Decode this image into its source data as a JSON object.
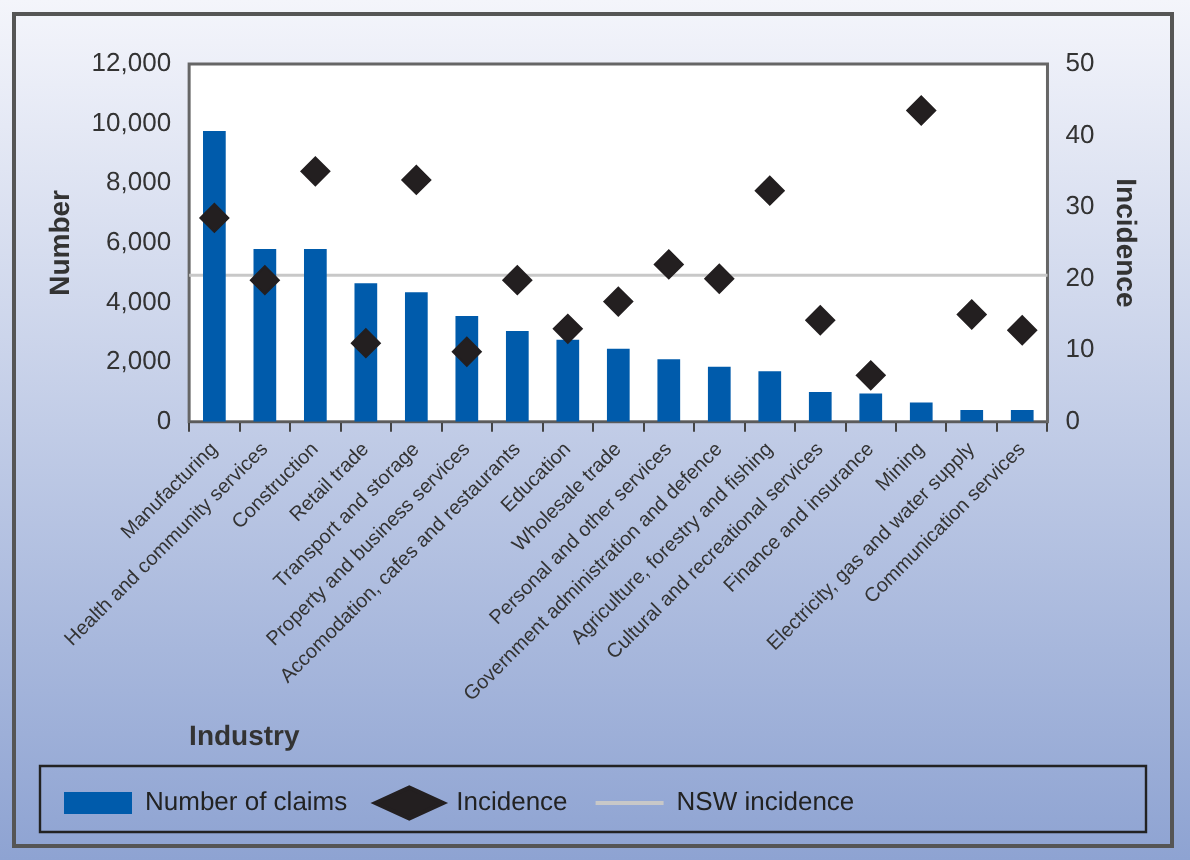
{
  "chart_data": {
    "type": "bar",
    "xlabel": "Industry",
    "ylabel": "Number",
    "y2label": "Incidence",
    "categories": [
      "Manufacturing",
      "Health and community services",
      "Construction",
      "Retail trade",
      "Transport and storage",
      "Property and business services",
      "Accomodation, cafes and restaurants",
      "Education",
      "Wholesale trade",
      "Personal and other services",
      "Government administration and defence",
      "Agriculture, forestry and fishing",
      "Cultural and recreational services",
      "Finance and insurance",
      "Mining",
      "Electricity, gas and water supply",
      "Communication services"
    ],
    "series": [
      {
        "name": "Number of claims",
        "color": "#005bab",
        "values": [
          9750,
          5800,
          5800,
          4650,
          4350,
          3550,
          3050,
          2750,
          2450,
          2100,
          1850,
          1700,
          1000,
          950,
          650,
          400,
          400
        ]
      },
      {
        "name": "Incidence",
        "type": "scatter",
        "axis": "y2",
        "marker": "diamond",
        "color": "#231f20",
        "values": [
          28.5,
          19.8,
          35,
          11,
          33.8,
          9.8,
          19.8,
          13,
          16.8,
          22,
          20,
          32.3,
          14.2,
          6.5,
          43.5,
          15,
          12.8
        ]
      }
    ],
    "ref_lines": [
      {
        "axis": "y2",
        "value": 20.5,
        "label": "NSW incidence",
        "color": "#c8c8c8"
      }
    ],
    "ylim": [
      0,
      12000
    ],
    "yticks": [
      0,
      {
        "value": 2000,
        "label": "2,000"
      },
      {
        "value": 4000,
        "label": "4,000"
      },
      {
        "value": 6000,
        "label": "6,000"
      },
      {
        "value": 8000,
        "label": "8,000"
      },
      {
        "value": 10000,
        "label": "10,000"
      },
      {
        "value": 12000,
        "label": "12,000"
      }
    ],
    "y2lim": [
      0,
      50
    ],
    "y2ticks": [
      0,
      10,
      20,
      30,
      40,
      50
    ],
    "legend": "bottom",
    "grid": false
  }
}
